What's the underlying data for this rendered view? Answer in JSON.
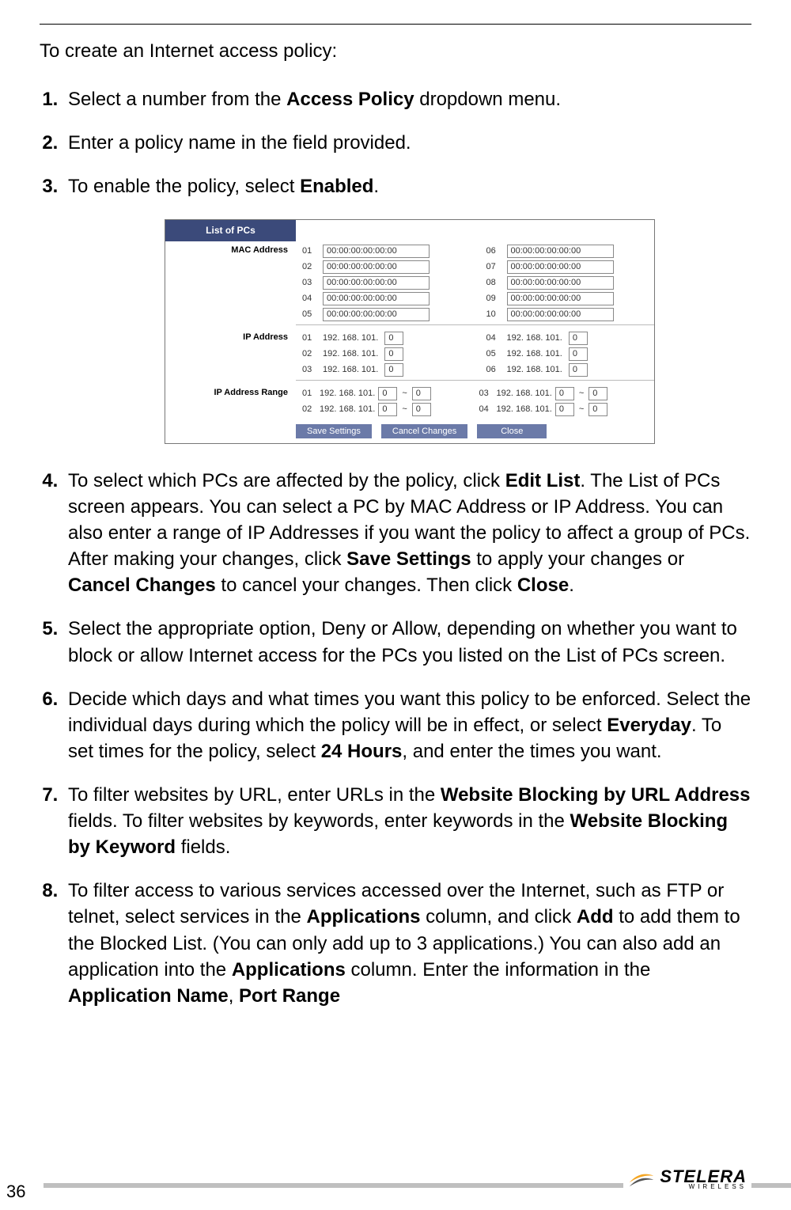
{
  "text": {
    "intro": "To create an Internet access policy:",
    "s1a": "Select a number from the ",
    "s1b": "Access Policy",
    "s1c": " dropdown menu.",
    "s2": "Enter a policy name in the field provided.",
    "s3a": "To enable the policy, select ",
    "s3b": "Enabled",
    "s3c": ".",
    "s4a": "To select which PCs are affected by the policy, click ",
    "s4b": "Edit List",
    "s4c": ". The List of PCs screen appears. You can select a PC by MAC Address or IP Address. You can also enter a range of IP Addresses if you want the policy to affect a group of PCs. After making your changes, click ",
    "s4d": "Save Settings",
    "s4e": " to apply your changes or ",
    "s4f": "Cancel Changes",
    "s4g": " to cancel your changes. Then click ",
    "s4h": "Close",
    "s4i": ".",
    "s5": "Select the appropriate option, Deny or Allow, depending on whether you want to block or allow Internet access for the PCs you listed on the List of PCs screen.",
    "s6a": "Decide which days and what times you want this policy to be enforced. Select the individual days during which the policy will be in effect, or select ",
    "s6b": "Everyday",
    "s6c": ". To set times for the policy, select ",
    "s6d": "24 Hours",
    "s6e": ", and enter the times you want.",
    "s7a": "To filter websites by URL, enter URLs in the ",
    "s7b": "Website Blocking by URL Address",
    "s7c": " fields. To filter websites by keywords, enter keywords in the ",
    "s7d": "Website Blocking by Keyword",
    "s7e": " fields.",
    "s8a": "To filter access to various services accessed over the Internet, such as FTP or telnet, select services in the ",
    "s8b": "Applications",
    "s8c": " column, and click ",
    "s8d": "Add",
    "s8e": " to add them to the Blocked List. (You can only add up to 3 applications.) You can also add an application into the ",
    "s8f": "Applications",
    "s8g": " column. Enter the information in the ",
    "s8h": "Application Name",
    "s8i": ", ",
    "s8j": "Port Range"
  },
  "fig": {
    "header": "List of PCs",
    "mac_label": "MAC Address",
    "ip_label": "IP Address",
    "range_label": "IP Address Range",
    "mac_default": "00:00:00:00:00:00",
    "ip_prefix": "192. 168. 101.",
    "zero": "0",
    "tilde": "~",
    "mac_nums_left": [
      "01",
      "02",
      "03",
      "04",
      "05"
    ],
    "mac_nums_right": [
      "06",
      "07",
      "08",
      "09",
      "10"
    ],
    "ip_nums_left": [
      "01",
      "02",
      "03"
    ],
    "ip_nums_right": [
      "04",
      "05",
      "06"
    ],
    "range_nums_left": [
      "01",
      "02"
    ],
    "range_nums_right": [
      "03",
      "04"
    ],
    "btn_save": "Save Settings",
    "btn_cancel": "Cancel Changes",
    "btn_close": "Close"
  },
  "footer": {
    "page": "36",
    "brand": "STELERA",
    "sub": "WIRELESS"
  },
  "colors": {
    "header_bg": "#3b4a7a",
    "btn_bg": "#6b7aa8",
    "stripe": "#bfbfbf",
    "swoosh1": "#f5a623",
    "swoosh2": "#555555"
  }
}
